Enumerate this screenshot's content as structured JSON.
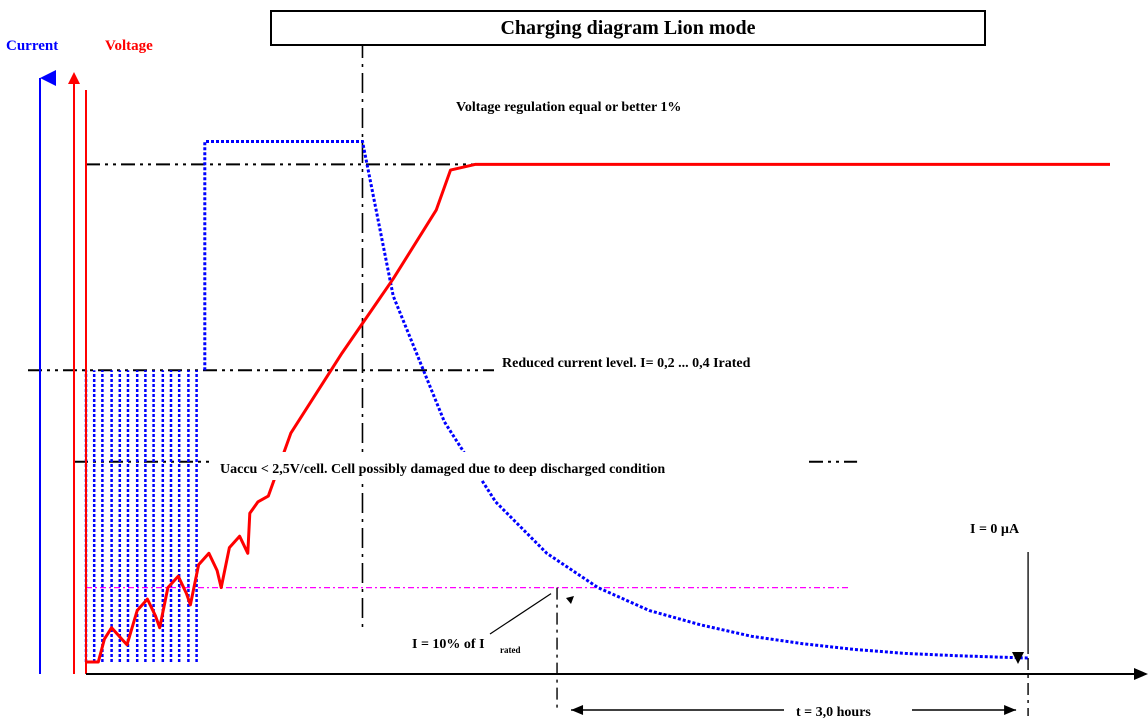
{
  "chart_data": {
    "type": "line",
    "title": "Charging diagram Lion mode",
    "axis_labels": {
      "current": "Current",
      "voltage": "Voltage"
    },
    "colors": {
      "current": "#0000ff",
      "voltage": "#ff0000",
      "threshold_10pct": "#ff00ff",
      "reference": "#000000"
    },
    "annotations": {
      "voltage_regulation": "Voltage regulation equal or better 1%",
      "reduced_current": "Reduced current level. I= 0,2 ... 0,4 Irated",
      "deep_discharge": "Uaccu < 2,5V/cell. Cell possibly damaged due to deep discharged condition",
      "zero_current": "I = 0 µA",
      "ten_percent_prefix": "I = 10% of I",
      "ten_percent_sub": "rated",
      "duration": "t = 3,0 hours"
    },
    "levels": {
      "voltage_regulation": 0.87,
      "reduced_current": 0.51,
      "deep_discharge": 0.35,
      "ten_percent_current": 0.13
    },
    "series": [
      {
        "name": "Voltage",
        "x": [
          0.0,
          0.012,
          0.018,
          0.025,
          0.035,
          0.04,
          0.05,
          0.06,
          0.068,
          0.072,
          0.08,
          0.09,
          0.098,
          0.102,
          0.11,
          0.12,
          0.128,
          0.132,
          0.14,
          0.15,
          0.158,
          0.16,
          0.168,
          0.178,
          0.2,
          0.25,
          0.3,
          0.342,
          0.356,
          0.38,
          0.45,
          0.6,
          0.8,
          1.0
        ],
        "y": [
          0.0,
          0.0,
          0.04,
          0.06,
          0.04,
          0.03,
          0.09,
          0.11,
          0.08,
          0.06,
          0.13,
          0.15,
          0.12,
          0.1,
          0.17,
          0.19,
          0.16,
          0.13,
          0.2,
          0.22,
          0.19,
          0.26,
          0.28,
          0.29,
          0.4,
          0.54,
          0.67,
          0.79,
          0.86,
          0.87,
          0.87,
          0.87,
          0.87,
          0.87
        ]
      },
      {
        "name": "Current",
        "x": [
          0.0,
          0.008,
          0.016,
          0.025,
          0.033,
          0.041,
          0.05,
          0.058,
          0.066,
          0.075,
          0.083,
          0.091,
          0.1,
          0.108,
          0.116,
          0.116,
          0.27,
          0.27,
          0.3,
          0.35,
          0.4,
          0.45,
          0.5,
          0.55,
          0.6,
          0.65,
          0.7,
          0.75,
          0.8,
          0.85,
          0.9,
          0.92
        ],
        "y": [
          0.51,
          0.51,
          0.51,
          0.51,
          0.51,
          0.51,
          0.51,
          0.51,
          0.51,
          0.51,
          0.51,
          0.51,
          0.51,
          0.51,
          0.51,
          0.91,
          0.91,
          0.91,
          0.64,
          0.42,
          0.28,
          0.19,
          0.13,
          0.09,
          0.065,
          0.045,
          0.032,
          0.022,
          0.015,
          0.011,
          0.008,
          0.007
        ]
      }
    ],
    "markers": {
      "regulation_onset_x": 0.27,
      "ten_percent_x": 0.46,
      "zero_current_x": 0.92
    }
  }
}
